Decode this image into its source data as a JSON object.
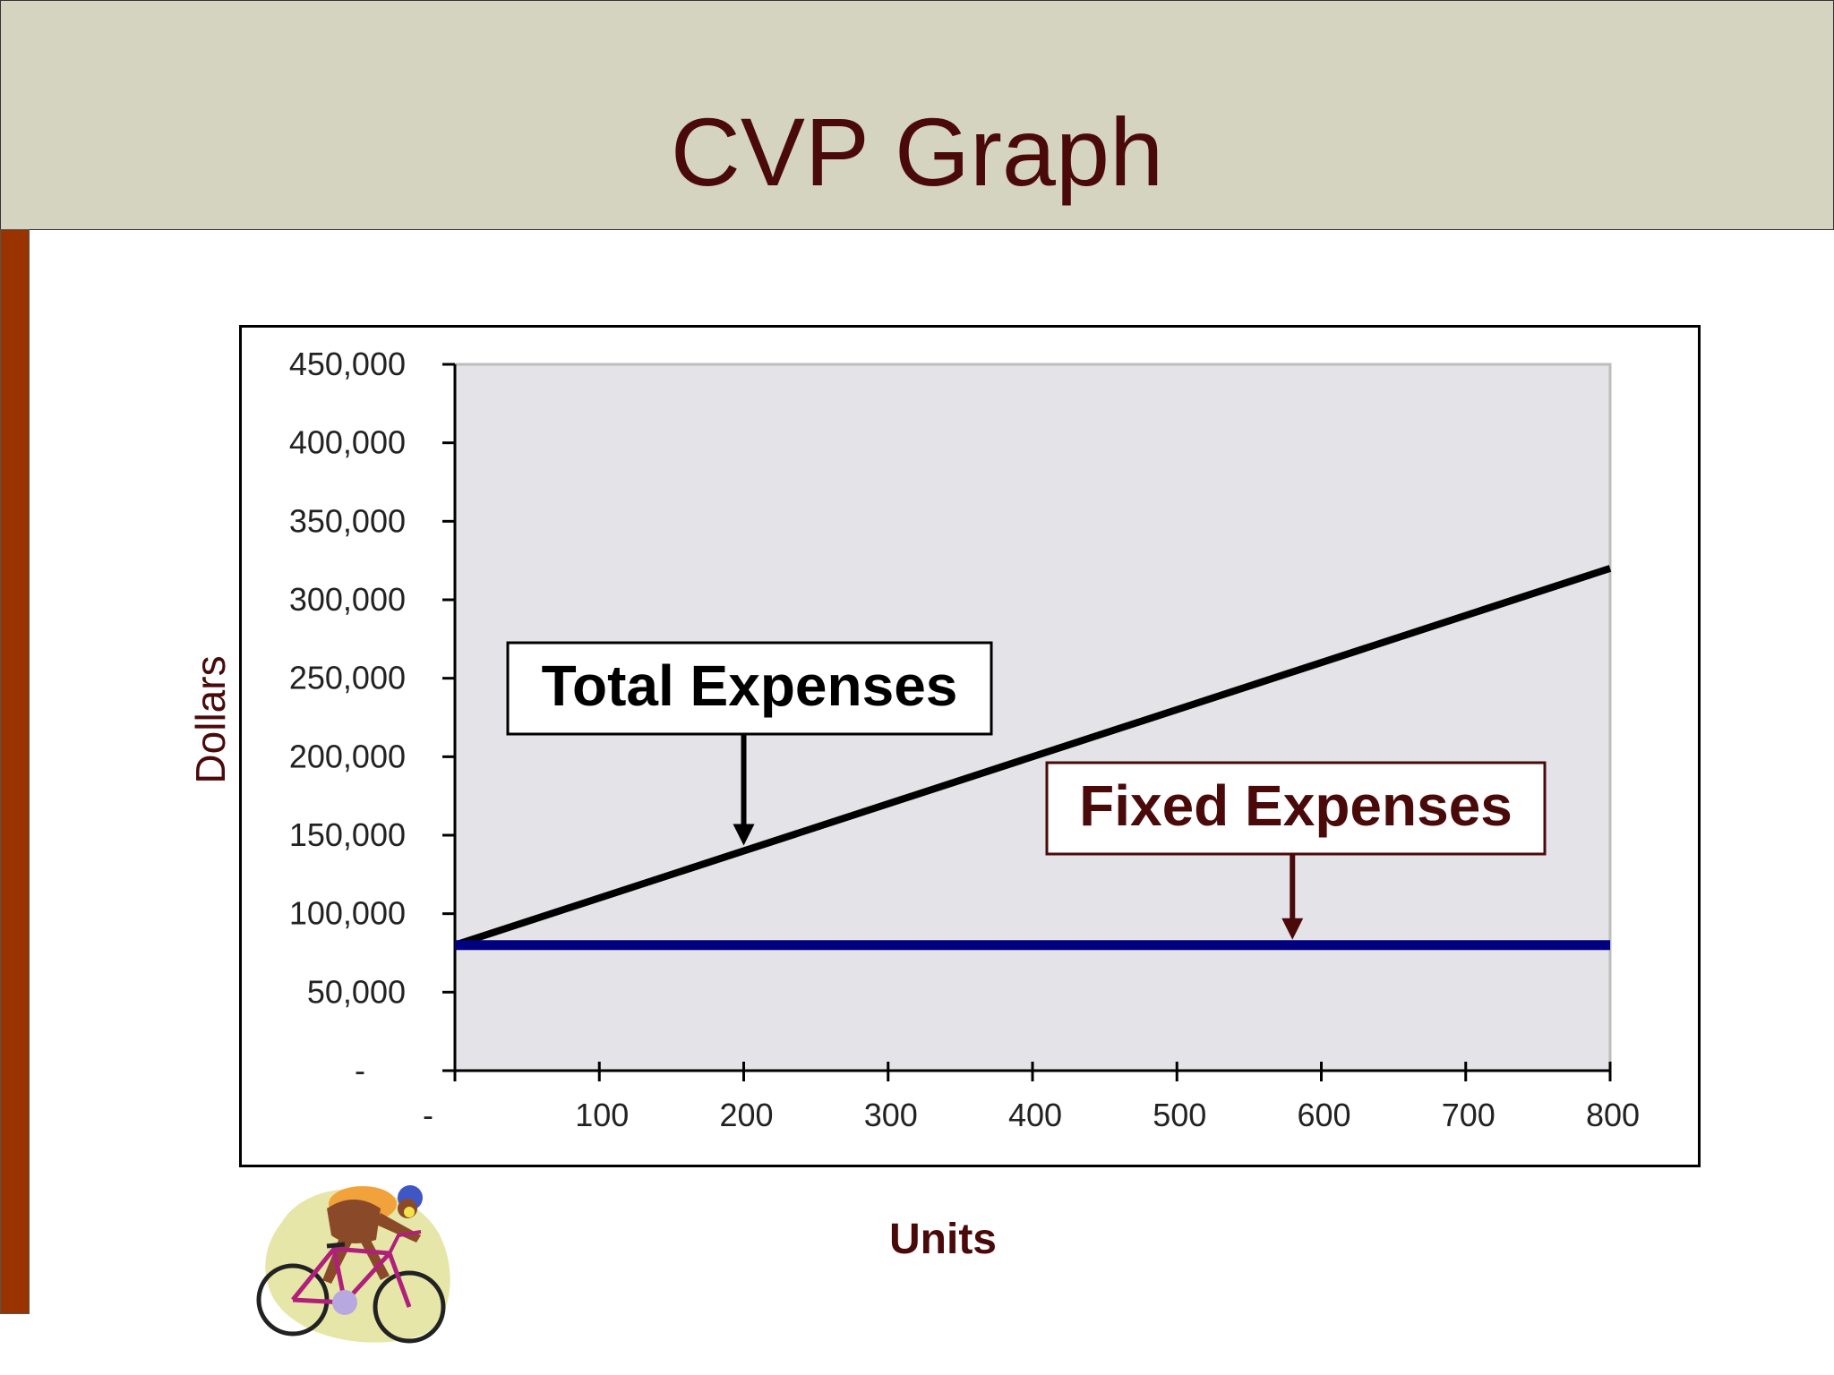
{
  "slide": {
    "title": "CVP Graph"
  },
  "colors": {
    "title_bar": "#d4d4c1",
    "title_text": "#4a0a0a",
    "side_bar": "#993300",
    "plot_bg": "#e3e3e8",
    "fixed_line": "#000080",
    "total_line": "#000000"
  },
  "chart_data": {
    "type": "line",
    "title": "",
    "xlabel": "Units",
    "ylabel": "Dollars",
    "xlim": [
      0,
      800
    ],
    "ylim": [
      0,
      450000
    ],
    "x_ticks": [
      "-",
      "100",
      "200",
      "300",
      "400",
      "500",
      "600",
      "700",
      "800"
    ],
    "y_ticks": [
      "-",
      "50,000",
      "100,000",
      "150,000",
      "200,000",
      "250,000",
      "300,000",
      "350,000",
      "400,000",
      "450,000"
    ],
    "x": [
      0,
      800
    ],
    "series": [
      {
        "name": "Total Expenses",
        "values": [
          80000,
          320000
        ],
        "color": "#000000"
      },
      {
        "name": "Fixed Expenses",
        "values": [
          80000,
          80000
        ],
        "color": "#000080"
      }
    ],
    "annotations": [
      {
        "text": "Total Expenses",
        "points_to_x": 200,
        "points_to_y": 140000,
        "text_color": "#000000"
      },
      {
        "text": "Fixed Expenses",
        "points_to_x": 580,
        "points_to_y": 80000,
        "text_color": "#4a0a0a"
      }
    ],
    "grid": false,
    "legend": "none"
  },
  "clipart": {
    "icon": "cyclist-icon"
  }
}
